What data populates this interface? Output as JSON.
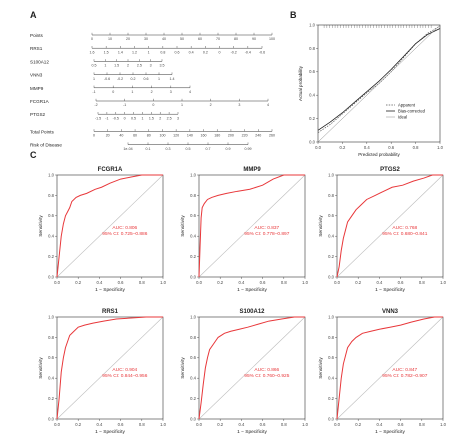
{
  "panels": {
    "a": "A",
    "b": "B",
    "c": "C"
  },
  "nomogram": {
    "rows": [
      {
        "label": "Points",
        "ticks": [
          "0",
          "10",
          "20",
          "30",
          "40",
          "50",
          "60",
          "70",
          "80",
          "90",
          "100"
        ]
      },
      {
        "label": "RRS1",
        "ticks": [
          "1.6",
          "1.5",
          "1.4",
          "1.2",
          "1",
          "0.8",
          "0.6",
          "0.4",
          "0.2",
          "0",
          "-0.2",
          "-0.4",
          "-0.6"
        ]
      },
      {
        "label": "S100A12",
        "ticks": [
          "0.5",
          "1",
          "1.5",
          "2",
          "2.5",
          "3",
          "3.5"
        ]
      },
      {
        "label": "VNN3",
        "ticks": [
          "1",
          "-0.6",
          "-0.2",
          "0.2",
          "0.6",
          "1",
          "1.4"
        ]
      },
      {
        "label": "MMP9",
        "ticks": [
          "-1",
          "0",
          "1",
          "2",
          "3",
          "4"
        ]
      },
      {
        "label": "FCGR1A",
        "ticks": [
          "-2",
          "-1",
          "0",
          "1",
          "2",
          "3",
          "4"
        ]
      },
      {
        "label": "PTGS2",
        "ticks": [
          "-1.5",
          "-1",
          "-0.5",
          "0",
          "0.5",
          "1",
          "1.5",
          "2",
          "2.5",
          "3"
        ]
      },
      {
        "label": "Total Points",
        "ticks": [
          "0",
          "20",
          "40",
          "60",
          "80",
          "100",
          "120",
          "140",
          "160",
          "180",
          "200",
          "220",
          "240",
          "260"
        ]
      },
      {
        "label": "Risk of Disease",
        "ticks": [
          "1e-04",
          "0.1",
          "0.3",
          "0.5",
          "0.7",
          "0.9",
          "0.99"
        ]
      }
    ]
  },
  "chart_data": [
    {
      "type": "line",
      "id": "calibration",
      "xlabel": "Predicted probability",
      "ylabel": "Actual probability",
      "xlim": [
        0,
        1
      ],
      "ylim": [
        0,
        1
      ],
      "xticks": [
        "0.0",
        "0.2",
        "0.4",
        "0.6",
        "0.8",
        "1.0"
      ],
      "yticks": [
        "0.0",
        "0.2",
        "0.4",
        "0.6",
        "0.8",
        "1.0"
      ],
      "legend_position": "bottom-right",
      "series": [
        {
          "name": "Apparent",
          "x": [
            0,
            0.1,
            0.2,
            0.3,
            0.4,
            0.5,
            0.6,
            0.7,
            0.8,
            0.9,
            1.0
          ],
          "y": [
            0.08,
            0.15,
            0.24,
            0.33,
            0.42,
            0.5,
            0.6,
            0.72,
            0.84,
            0.93,
            0.99
          ]
        },
        {
          "name": "Bias-corrected",
          "x": [
            0,
            0.1,
            0.2,
            0.3,
            0.4,
            0.5,
            0.6,
            0.7,
            0.8,
            0.9,
            1.0
          ],
          "y": [
            0.1,
            0.17,
            0.25,
            0.34,
            0.43,
            0.52,
            0.62,
            0.73,
            0.84,
            0.92,
            0.97
          ]
        },
        {
          "name": "Ideal",
          "x": [
            0,
            1
          ],
          "y": [
            0,
            1
          ]
        }
      ]
    },
    {
      "type": "line",
      "id": "roc-fcgr1a",
      "title": "FCGR1A",
      "auc": "AUC: 0.806",
      "ci": "95% CI: 0.725–0.886",
      "xlabel": "1 − Specificity",
      "ylabel": "Sensitivity",
      "xlim": [
        0,
        1
      ],
      "ylim": [
        0,
        1
      ],
      "ticks": [
        "0.0",
        "0.2",
        "0.4",
        "0.6",
        "0.8",
        "1.0"
      ],
      "x": [
        0,
        0.02,
        0.04,
        0.06,
        0.08,
        0.1,
        0.12,
        0.14,
        0.18,
        0.22,
        0.28,
        0.36,
        0.42,
        0.5,
        0.6,
        0.7,
        0.8,
        1.0
      ],
      "y": [
        0,
        0.2,
        0.4,
        0.52,
        0.6,
        0.64,
        0.68,
        0.74,
        0.78,
        0.8,
        0.82,
        0.86,
        0.88,
        0.92,
        0.96,
        0.98,
        1.0,
        1.0
      ]
    },
    {
      "type": "line",
      "id": "roc-mmp9",
      "title": "MMP9",
      "auc": "AUC: 0.837",
      "ci": "95% CI: 0.778–0.897",
      "xlabel": "1 − Specificity",
      "ylabel": "Sensitivity",
      "xlim": [
        0,
        1
      ],
      "ylim": [
        0,
        1
      ],
      "ticks": [
        "0.0",
        "0.2",
        "0.4",
        "0.6",
        "0.8",
        "1.0"
      ],
      "x": [
        0,
        0.01,
        0.02,
        0.03,
        0.05,
        0.08,
        0.12,
        0.18,
        0.26,
        0.36,
        0.48,
        0.6,
        0.7,
        0.8,
        1.0
      ],
      "y": [
        0,
        0.3,
        0.58,
        0.68,
        0.72,
        0.76,
        0.78,
        0.8,
        0.82,
        0.84,
        0.86,
        0.9,
        0.96,
        1.0,
        1.0
      ]
    },
    {
      "type": "line",
      "id": "roc-ptgs2",
      "title": "PTGS2",
      "auc": "AUC: 0.768",
      "ci": "95% CI: 0.680–0.841",
      "xlabel": "1 − Specificity",
      "ylabel": "Sensitivity",
      "xlim": [
        0,
        1
      ],
      "ylim": [
        0,
        1
      ],
      "ticks": [
        "0.0",
        "0.2",
        "0.4",
        "0.6",
        "0.8",
        "1.0"
      ],
      "x": [
        0,
        0.02,
        0.04,
        0.06,
        0.08,
        0.1,
        0.14,
        0.18,
        0.22,
        0.28,
        0.36,
        0.44,
        0.52,
        0.62,
        0.72,
        0.82,
        0.9,
        1.0
      ],
      "y": [
        0,
        0.1,
        0.26,
        0.38,
        0.46,
        0.54,
        0.6,
        0.66,
        0.7,
        0.76,
        0.8,
        0.84,
        0.88,
        0.9,
        0.94,
        0.97,
        1.0,
        1.0
      ]
    },
    {
      "type": "line",
      "id": "roc-rrs1",
      "title": "RRS1",
      "auc": "AUC: 0.904",
      "ci": "95% CI: 0.844–0.956",
      "xlabel": "1 − Specificity",
      "ylabel": "Sensitivity",
      "xlim": [
        0,
        1
      ],
      "ylim": [
        0,
        1
      ],
      "ticks": [
        "0.0",
        "0.2",
        "0.4",
        "0.6",
        "0.8",
        "1.0"
      ],
      "x": [
        0,
        0.02,
        0.04,
        0.06,
        0.08,
        0.1,
        0.12,
        0.16,
        0.2,
        0.26,
        0.34,
        0.44,
        0.56,
        0.7,
        0.84,
        1.0
      ],
      "y": [
        0,
        0.2,
        0.46,
        0.6,
        0.7,
        0.76,
        0.82,
        0.86,
        0.9,
        0.92,
        0.94,
        0.96,
        0.98,
        0.99,
        1.0,
        1.0
      ]
    },
    {
      "type": "line",
      "id": "roc-s100a12",
      "title": "S100A12",
      "auc": "AUC: 0.866",
      "ci": "95% CI: 0.760–0.925",
      "xlabel": "1 − Specificity",
      "ylabel": "Sensitivity",
      "xlim": [
        0,
        1
      ],
      "ylim": [
        0,
        1
      ],
      "ticks": [
        "0.0",
        "0.2",
        "0.4",
        "0.6",
        "0.8",
        "1.0"
      ],
      "x": [
        0,
        0.02,
        0.04,
        0.06,
        0.08,
        0.1,
        0.14,
        0.18,
        0.24,
        0.3,
        0.38,
        0.46,
        0.56,
        0.66,
        0.78,
        0.9,
        1.0
      ],
      "y": [
        0,
        0.16,
        0.34,
        0.5,
        0.6,
        0.68,
        0.74,
        0.8,
        0.84,
        0.86,
        0.88,
        0.9,
        0.93,
        0.96,
        0.98,
        1.0,
        1.0
      ]
    },
    {
      "type": "line",
      "id": "roc-vnn3",
      "title": "VNN3",
      "auc": "AUC: 0.847",
      "ci": "95% CI: 0.782–0.907",
      "xlabel": "1 − Specificity",
      "ylabel": "Sensitivity",
      "xlim": [
        0,
        1
      ],
      "ylim": [
        0,
        1
      ],
      "ticks": [
        "0.0",
        "0.2",
        "0.4",
        "0.6",
        "0.8",
        "1.0"
      ],
      "x": [
        0,
        0.02,
        0.04,
        0.06,
        0.08,
        0.1,
        0.14,
        0.18,
        0.24,
        0.32,
        0.4,
        0.5,
        0.6,
        0.7,
        0.82,
        0.92,
        1.0
      ],
      "y": [
        0,
        0.2,
        0.4,
        0.54,
        0.62,
        0.7,
        0.76,
        0.8,
        0.84,
        0.86,
        0.88,
        0.9,
        0.92,
        0.95,
        0.98,
        1.0,
        1.0
      ]
    }
  ],
  "colors": {
    "roc": "#e8373a",
    "axis": "#333333",
    "diag": "#bdbdbd",
    "text": "#222222"
  }
}
